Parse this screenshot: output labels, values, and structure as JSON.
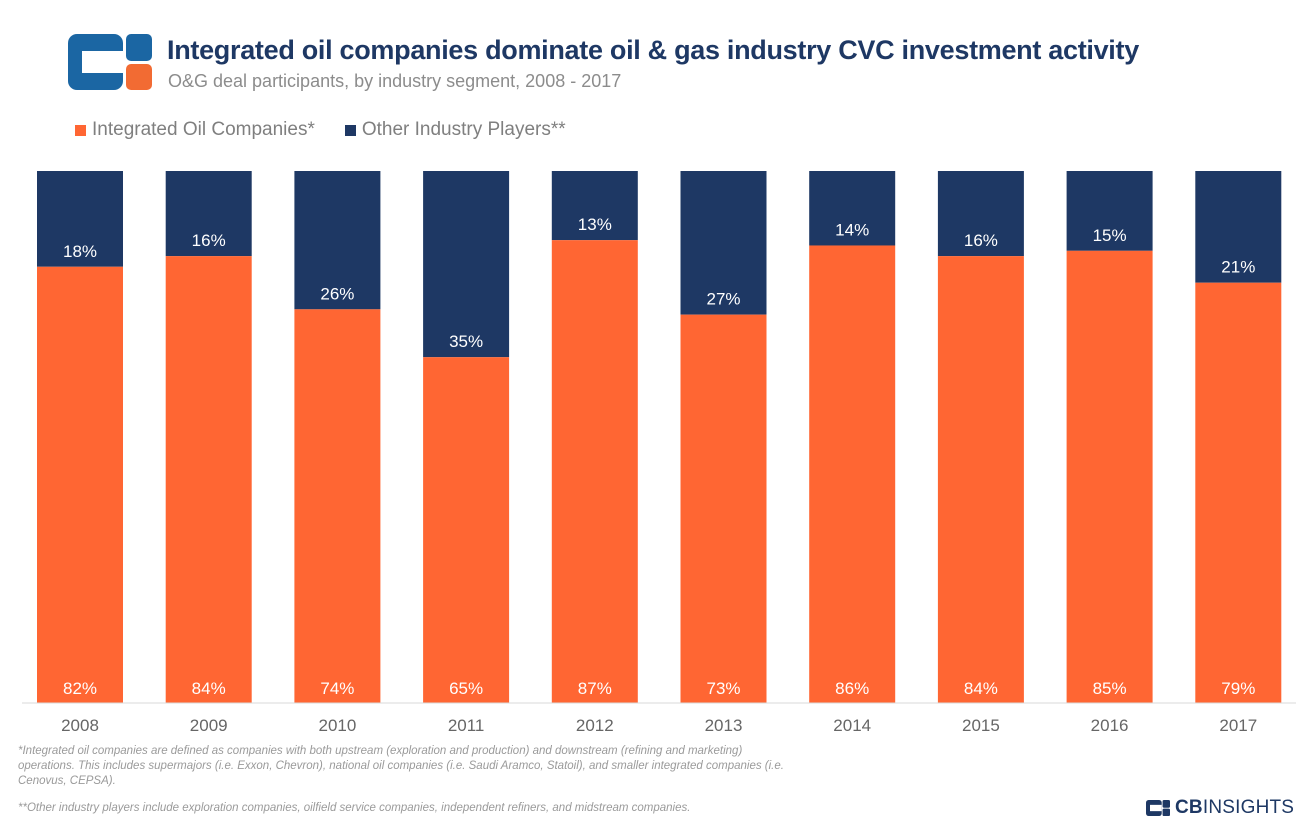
{
  "header": {
    "title": "Integrated oil companies dominate oil & gas industry CVC investment activity",
    "subtitle": "O&G deal participants, by industry segment, 2008 - 2017"
  },
  "colors": {
    "integrated": "#ff6633",
    "other": "#1e3864",
    "logo_blue": "#1b66a3",
    "logo_orange": "#f26b33",
    "axis_text": "#666666"
  },
  "legend": [
    {
      "label": "Integrated Oil Companies*",
      "color": "#ff6633"
    },
    {
      "label": "Other Industry Players**",
      "color": "#1e3864"
    }
  ],
  "chart_data": {
    "type": "bar",
    "stacked": true,
    "percent": true,
    "categories": [
      "2008",
      "2009",
      "2010",
      "2011",
      "2012",
      "2013",
      "2014",
      "2015",
      "2016",
      "2017"
    ],
    "series": [
      {
        "name": "Integrated Oil Companies*",
        "values": [
          82,
          84,
          74,
          65,
          87,
          73,
          86,
          84,
          85,
          79
        ]
      },
      {
        "name": "Other Industry Players**",
        "values": [
          18,
          16,
          26,
          35,
          13,
          27,
          14,
          16,
          15,
          21
        ]
      }
    ],
    "ylim": [
      0,
      100
    ],
    "grid": false,
    "legend_position": "top-left"
  },
  "footnotes": {
    "note1": "*Integrated oil companies are defined as companies with both upstream (exploration and production) and downstream (refining and marketing) operations. This includes supermajors (i.e. Exxon, Chevron), national oil companies (i.e. Saudi Aramco, Statoil), and smaller integrated companies (i.e. Cenovus, CEPSA).",
    "note2": "**Other industry players include exploration companies, oilfield service companies, independent refiners, and midstream companies."
  },
  "brand": {
    "bold": "CB",
    "rest": "INSIGHTS"
  }
}
